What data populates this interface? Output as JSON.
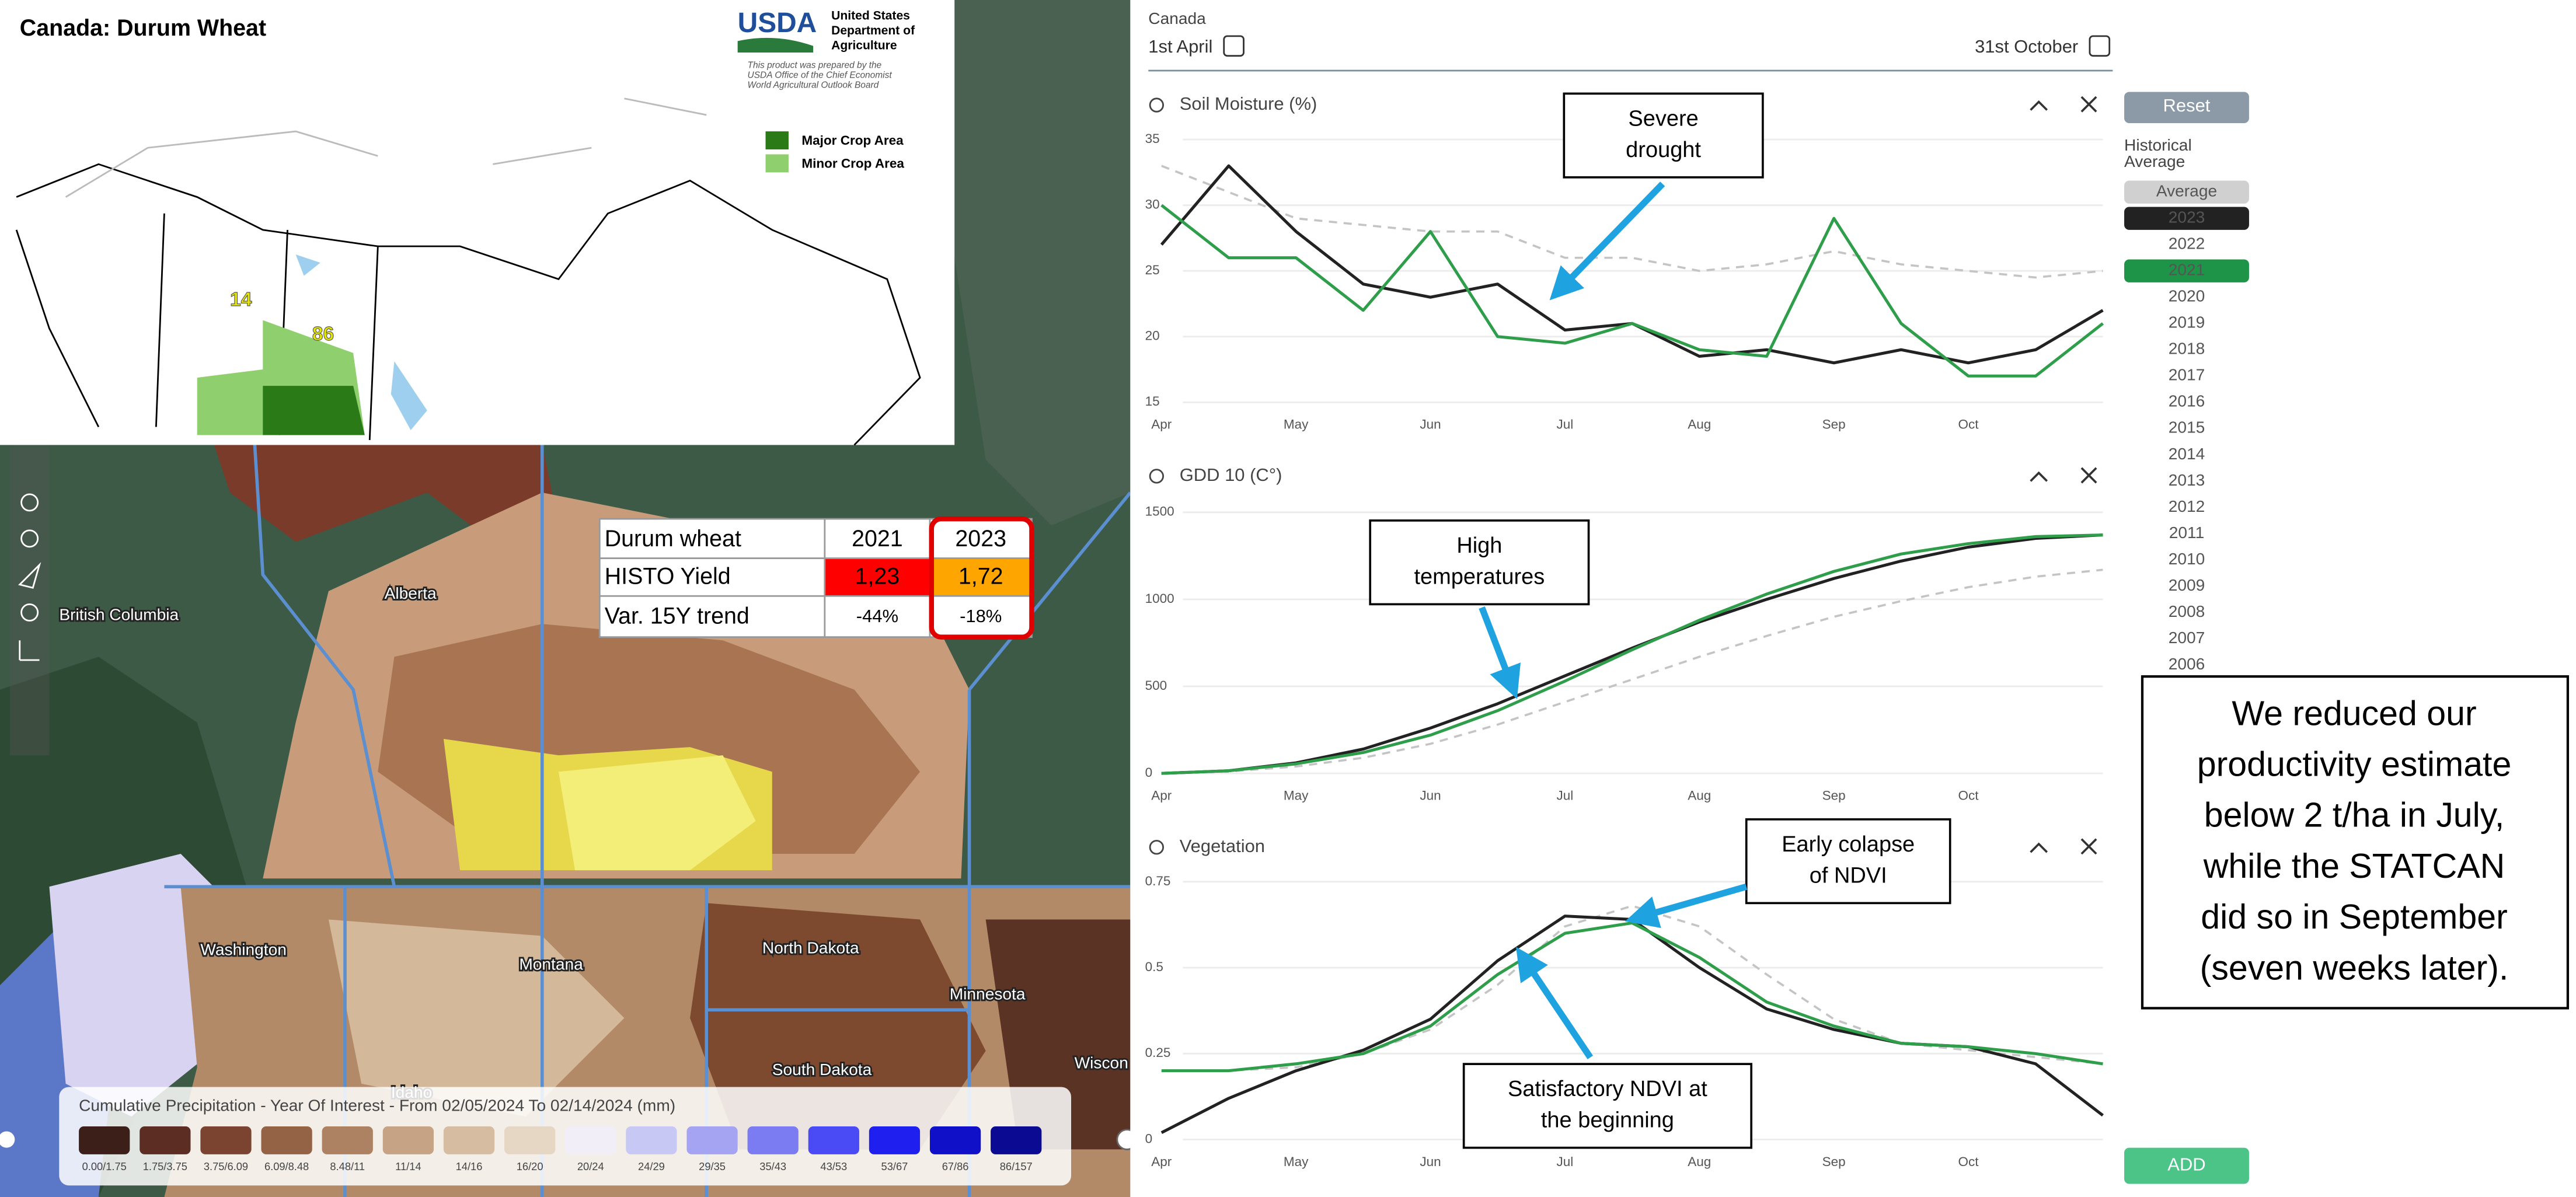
{
  "usda_inset": {
    "title": "Canada:  Durum Wheat",
    "logo": "USDA",
    "agency": [
      "United States",
      "Department of",
      "Agriculture"
    ],
    "note": [
      "This product was prepared by the",
      "USDA Office of the Chief Economist",
      "World Agricultural Outlook Board"
    ],
    "legend": [
      "Major Crop Area",
      "Minor Crop Area"
    ],
    "region_values": [
      14,
      86
    ]
  },
  "yield_table": {
    "header": [
      "Durum wheat",
      "2021",
      "2023"
    ],
    "rows": [
      [
        "HISTO Yield",
        "1,23",
        "1,72"
      ],
      [
        "Var. 15Y trend",
        "-44%",
        "-18%"
      ]
    ]
  },
  "map_labels": [
    "British Columbia",
    "Alberta",
    "Washington",
    "Montana",
    "North Dakota",
    "Minnesota",
    "Idaho",
    "South Dakota",
    "Wiscon"
  ],
  "precip_legend": {
    "title": "Cumulative Precipitation - Year Of Interest - From 02/05/2024 To 02/14/2024 (mm)",
    "bins": [
      "0.00/1.75",
      "1.75/3.75",
      "3.75/6.09",
      "6.09/8.48",
      "8.48/11",
      "11/14",
      "14/16",
      "16/20",
      "20/24",
      "24/29",
      "29/35",
      "35/43",
      "43/53",
      "53/67",
      "67/86",
      "86/157"
    ]
  },
  "panel": {
    "country": "Canada",
    "start": "1st April",
    "end": "31st October"
  },
  "chart_data": [
    {
      "type": "line",
      "title": "Soil Moisture (%)",
      "categories": [
        "Apr",
        null,
        "May",
        null,
        "Jun",
        null,
        "Jul",
        null,
        "Aug",
        null,
        "Sep",
        null,
        "Oct",
        null,
        null
      ],
      "ylim": [
        15,
        35
      ],
      "yticks": [
        15,
        20,
        25,
        30,
        35
      ],
      "grid": true,
      "series": [
        {
          "color": "#c4c4c4",
          "dashed": true,
          "values": [
            33,
            31,
            29,
            28.5,
            28,
            28,
            26,
            26,
            25,
            25.5,
            26.5,
            25.5,
            25,
            24.5,
            25
          ]
        },
        {
          "color": "#222222",
          "dashed": false,
          "values": [
            27,
            33,
            28,
            24,
            23,
            24,
            20.5,
            21,
            18.5,
            19,
            18,
            19,
            18,
            19,
            22
          ]
        },
        {
          "color": "#2e9e4a",
          "dashed": false,
          "values": [
            30,
            26,
            26,
            22,
            28,
            20,
            19.5,
            21,
            19,
            18.5,
            29,
            21,
            17,
            17,
            21
          ]
        }
      ]
    },
    {
      "type": "line",
      "title": "GDD 10 (C°)",
      "categories": [
        "Apr",
        null,
        "May",
        null,
        "Jun",
        null,
        "Jul",
        null,
        "Aug",
        null,
        "Sep",
        null,
        "Oct",
        null,
        null
      ],
      "ylim": [
        0,
        1500
      ],
      "yticks": [
        0,
        500,
        1000,
        1500
      ],
      "grid": true,
      "series": [
        {
          "color": "#c4c4c4",
          "dashed": true,
          "values": [
            0,
            10,
            40,
            90,
            170,
            280,
            410,
            540,
            670,
            790,
            900,
            990,
            1070,
            1130,
            1170
          ]
        },
        {
          "color": "#222222",
          "dashed": false,
          "values": [
            0,
            15,
            60,
            140,
            260,
            400,
            560,
            720,
            870,
            1000,
            1120,
            1220,
            1300,
            1350,
            1370
          ]
        },
        {
          "color": "#2e9e4a",
          "dashed": false,
          "values": [
            0,
            15,
            55,
            120,
            220,
            360,
            530,
            710,
            880,
            1030,
            1160,
            1260,
            1320,
            1360,
            1370
          ]
        }
      ]
    },
    {
      "type": "line",
      "title": "Vegetation",
      "categories": [
        "Apr",
        null,
        "May",
        null,
        "Jun",
        null,
        "Jul",
        null,
        "Aug",
        null,
        "Sep",
        null,
        "Oct",
        null,
        null
      ],
      "ylim": [
        0,
        0.75
      ],
      "yticks": [
        0,
        0.25,
        0.5,
        0.75
      ],
      "grid": true,
      "series": [
        {
          "color": "#c4c4c4",
          "dashed": true,
          "values": [
            0.2,
            0.2,
            0.21,
            0.25,
            0.32,
            0.45,
            0.62,
            0.68,
            0.62,
            0.48,
            0.35,
            0.28,
            0.26,
            0.24,
            0.22
          ]
        },
        {
          "color": "#222222",
          "dashed": false,
          "values": [
            0.02,
            0.12,
            0.2,
            0.26,
            0.35,
            0.52,
            0.65,
            0.64,
            0.5,
            0.38,
            0.32,
            0.28,
            0.27,
            0.22,
            0.07
          ]
        },
        {
          "color": "#2e9e4a",
          "dashed": false,
          "values": [
            0.2,
            0.2,
            0.22,
            0.25,
            0.33,
            0.48,
            0.6,
            0.63,
            0.53,
            0.4,
            0.33,
            0.28,
            0.27,
            0.25,
            0.22
          ]
        }
      ]
    }
  ],
  "sidebar": {
    "reset": "Reset",
    "heading": [
      "Historical",
      "Average"
    ],
    "items": [
      "Average",
      "2023",
      "2022",
      "2021",
      "2020",
      "2019",
      "2018",
      "2017",
      "2016",
      "2015",
      "2014",
      "2013",
      "2012",
      "2011",
      "2010",
      "2009",
      "2008",
      "2007",
      "2006"
    ],
    "add": "ADD"
  },
  "callouts": [
    {
      "lines": [
        "Severe",
        "drought"
      ]
    },
    {
      "lines": [
        "High",
        "temperatures"
      ]
    },
    {
      "lines": [
        "Early colapse",
        "of NDVI"
      ]
    },
    {
      "lines": [
        "Satisfactory NDVI at",
        "the beginning"
      ]
    }
  ],
  "note": [
    "We reduced our",
    "productivity estimate",
    "below 2 t/ha in July,",
    "while the STATCAN",
    "did so in September",
    "(seven weeks later)."
  ]
}
